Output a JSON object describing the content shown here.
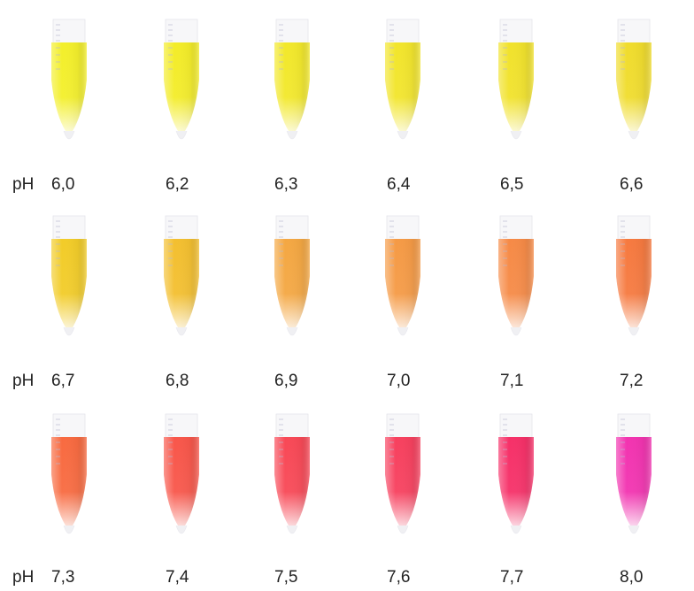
{
  "rows": [
    {
      "prefix": "pH",
      "samples": [
        {
          "label": "6,0",
          "color": "#f3ef2a"
        },
        {
          "label": "6,2",
          "color": "#f3ec28"
        },
        {
          "label": "6,3",
          "color": "#f2e82a"
        },
        {
          "label": "6,4",
          "color": "#f2e52b"
        },
        {
          "label": "6,5",
          "color": "#f1e22b"
        },
        {
          "label": "6,6",
          "color": "#f0dc2c"
        }
      ]
    },
    {
      "prefix": "pH",
      "samples": [
        {
          "label": "6,7",
          "color": "#f2cc28"
        },
        {
          "label": "6,8",
          "color": "#f3bf2f"
        },
        {
          "label": "6,9",
          "color": "#f4a742"
        },
        {
          "label": "7,0",
          "color": "#f59a45"
        },
        {
          "label": "7,1",
          "color": "#f68a46"
        },
        {
          "label": "7,2",
          "color": "#f6793f"
        }
      ]
    },
    {
      "prefix": "pH",
      "samples": [
        {
          "label": "7,3",
          "color": "#f86a40"
        },
        {
          "label": "7,4",
          "color": "#f8564a"
        },
        {
          "label": "7,5",
          "color": "#f84856"
        },
        {
          "label": "7,6",
          "color": "#f7405e"
        },
        {
          "label": "7,7",
          "color": "#f63068"
        },
        {
          "label": "8,0",
          "color": "#f233b0"
        }
      ]
    }
  ]
}
